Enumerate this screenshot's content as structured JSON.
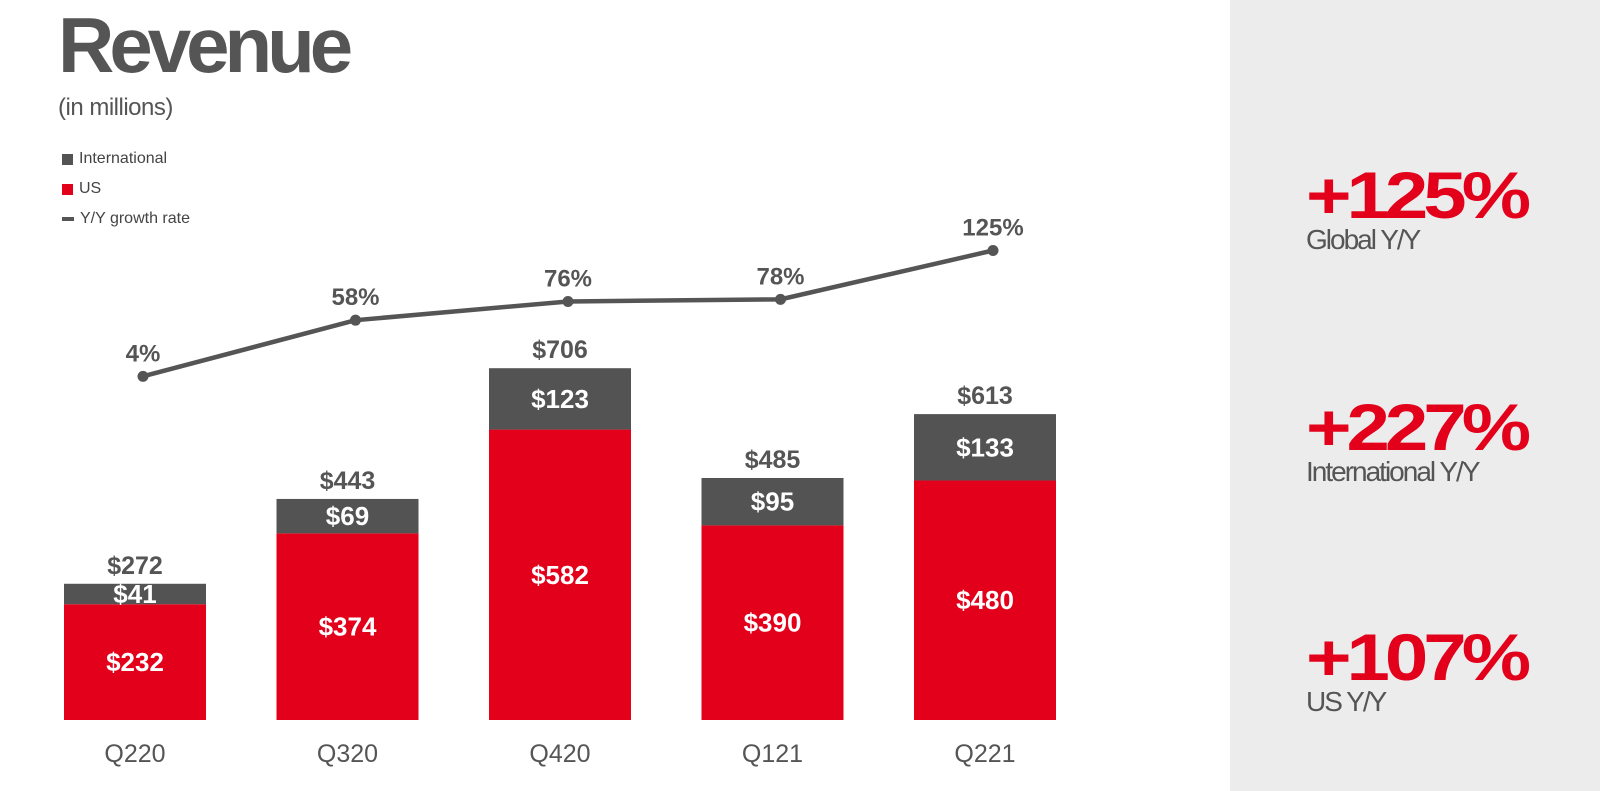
{
  "colors": {
    "us": "#e3001b",
    "international": "#535353",
    "growth_line": "#555555",
    "text_dark": "#555555",
    "panel_bg": "#ececec"
  },
  "chart_data": {
    "type": "bar",
    "stacked": true,
    "title": "Revenue",
    "subtitle": "(in millions)",
    "categories": [
      "Q220",
      "Q320",
      "Q420",
      "Q121",
      "Q221"
    ],
    "series": [
      {
        "name": "US",
        "values": [
          232,
          374,
          582,
          390,
          480
        ],
        "labels": [
          "$232",
          "$374",
          "$582",
          "$390",
          "$480"
        ]
      },
      {
        "name": "International",
        "values": [
          41,
          69,
          123,
          95,
          133
        ],
        "labels": [
          "$41",
          "$69",
          "$123",
          "$95",
          "$133"
        ]
      }
    ],
    "totals": {
      "values": [
        272,
        443,
        706,
        485,
        613
      ],
      "labels": [
        "$272",
        "$443",
        "$706",
        "$485",
        "$613"
      ]
    },
    "growth": {
      "name": "Y/Y growth rate",
      "values": [
        4,
        58,
        76,
        78,
        125
      ],
      "labels": [
        "4%",
        "58%",
        "76%",
        "78%",
        "125%"
      ]
    },
    "legend": [
      "International",
      "US",
      "Y/Y growth rate"
    ],
    "legend_position": "top-left",
    "ylim": [
      0,
      720
    ],
    "grid": false
  },
  "kpis": [
    {
      "value": "+125%",
      "label": "Global Y/Y"
    },
    {
      "value": "+227%",
      "label": "International Y/Y"
    },
    {
      "value": "+107%",
      "label": "US Y/Y"
    }
  ]
}
